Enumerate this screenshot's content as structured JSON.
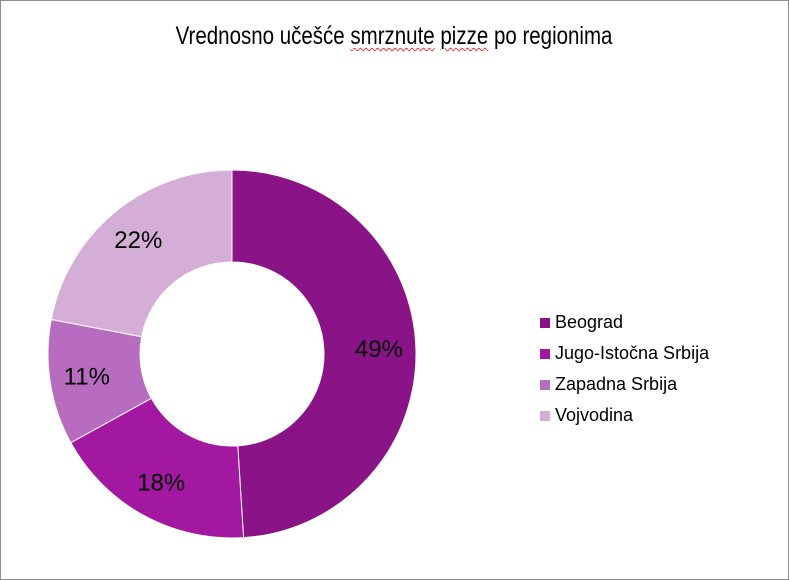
{
  "chart_data": {
    "type": "pie",
    "variant": "donut",
    "title_parts": [
      "Vrednosno učešće ",
      "smrznute",
      " ",
      "pizze",
      " po regionima"
    ],
    "title": "Vrednosno učešće smrznute pizze po regionima",
    "categories": [
      "Beograd",
      "Jugo-Istočna Srbija",
      "Zapadna Srbija",
      "Vojvodina"
    ],
    "values": [
      49,
      18,
      11,
      22
    ],
    "labels": [
      "49%",
      "18%",
      "11%",
      "22%"
    ],
    "colors": [
      "#8a1487",
      "#a318a1",
      "#b86cbf",
      "#d5aed7"
    ],
    "legend_position": "right"
  }
}
